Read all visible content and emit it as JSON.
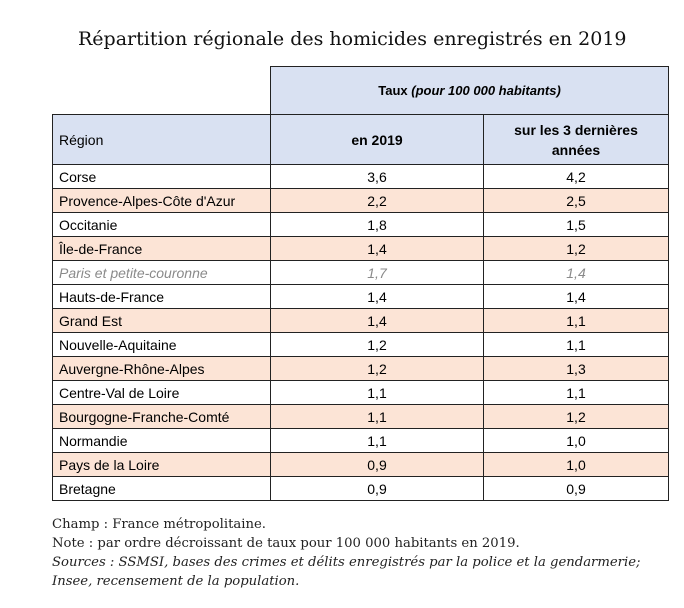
{
  "title": "Répartition régionale des homicides enregistrés en 2019",
  "table": {
    "group_header_main": "Taux ",
    "group_header_italic": "(pour 100 000 habitants)",
    "col_region": "Région",
    "col_2019": "en 2019",
    "col_3y": "sur les 3 dernières années",
    "rows": [
      {
        "region": "Corse",
        "v2019": "3,6",
        "v3y": "4,2",
        "shaded": false,
        "italic": false
      },
      {
        "region": "Provence-Alpes-Côte d'Azur",
        "v2019": "2,2",
        "v3y": "2,5",
        "shaded": true,
        "italic": false
      },
      {
        "region": "Occitanie",
        "v2019": "1,8",
        "v3y": "1,5",
        "shaded": false,
        "italic": false
      },
      {
        "region": "Île-de-France",
        "v2019": "1,4",
        "v3y": "1,2",
        "shaded": true,
        "italic": false
      },
      {
        "region": "Paris et petite-couronne",
        "v2019": "1,7",
        "v3y": "1,4",
        "shaded": false,
        "italic": true
      },
      {
        "region": "Hauts-de-France",
        "v2019": "1,4",
        "v3y": "1,4",
        "shaded": false,
        "italic": false
      },
      {
        "region": "Grand Est",
        "v2019": "1,4",
        "v3y": "1,1",
        "shaded": true,
        "italic": false
      },
      {
        "region": "Nouvelle-Aquitaine",
        "v2019": "1,2",
        "v3y": "1,1",
        "shaded": false,
        "italic": false
      },
      {
        "region": "Auvergne-Rhône-Alpes",
        "v2019": "1,2",
        "v3y": "1,3",
        "shaded": true,
        "italic": false
      },
      {
        "region": "Centre-Val de Loire",
        "v2019": "1,1",
        "v3y": "1,1",
        "shaded": false,
        "italic": false
      },
      {
        "region": "Bourgogne-Franche-Comté",
        "v2019": "1,1",
        "v3y": "1,2",
        "shaded": true,
        "italic": false
      },
      {
        "region": "Normandie",
        "v2019": "1,1",
        "v3y": "1,0",
        "shaded": false,
        "italic": false
      },
      {
        "region": "Pays de la Loire",
        "v2019": "0,9",
        "v3y": "1,0",
        "shaded": true,
        "italic": false
      },
      {
        "region": "Bretagne",
        "v2019": "0,9",
        "v3y": "0,9",
        "shaded": false,
        "italic": false
      }
    ]
  },
  "notes": {
    "champ": "Champ : France métropolitaine.",
    "note": "Note : par ordre décroissant de taux pour 100 000 habitants en 2019.",
    "sources_line1": "Sources : SSMSI, bases des crimes et délits enregistrés par la police et la gendarmerie;",
    "sources_line2": "Insee, recensement de la population."
  },
  "colors": {
    "header_blue": "#d9e1f2",
    "row_peach": "#fce4d6",
    "italic_gray": "#8a8a8a"
  }
}
